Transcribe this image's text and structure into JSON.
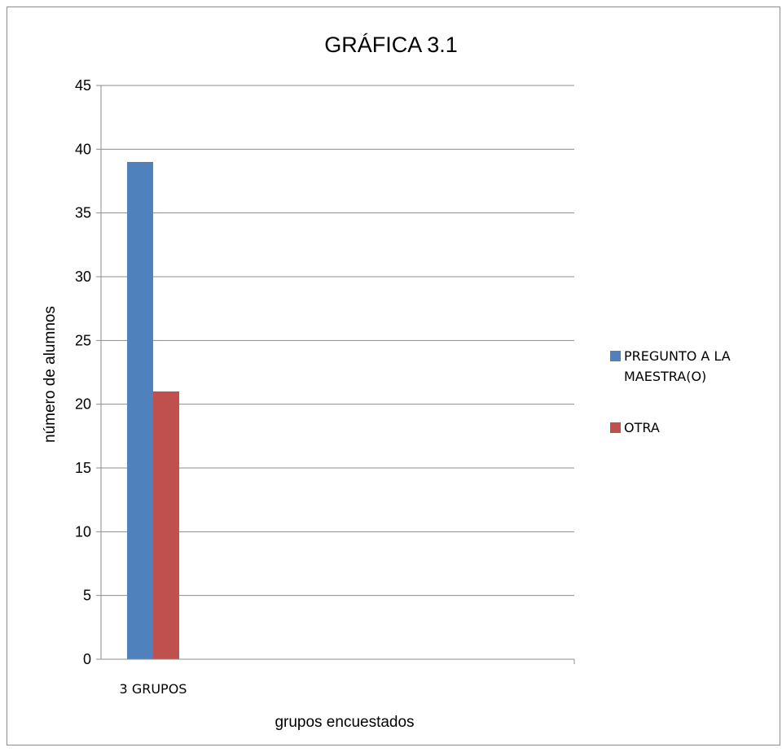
{
  "chart_data": {
    "type": "bar",
    "title": "GRÁFICA  3.1",
    "xlabel": "grupos  encuestados",
    "ylabel": "número de alumnos",
    "categories": [
      "3 GRUPOS"
    ],
    "ylim": [
      0,
      45
    ],
    "yticks": [
      0,
      5,
      10,
      15,
      20,
      25,
      30,
      35,
      40,
      45
    ],
    "grid": true,
    "legend_position": "right",
    "series": [
      {
        "name": "PREGUNTO A LA MAESTRA(O)",
        "legend_lines": [
          "PREGUNTO A LA",
          "MAESTRA(O)"
        ],
        "values": [
          39
        ],
        "color": "#4f81bd"
      },
      {
        "name": "OTRA",
        "legend_lines": [
          "OTRA"
        ],
        "values": [
          21
        ],
        "color": "#c0504d"
      }
    ]
  }
}
